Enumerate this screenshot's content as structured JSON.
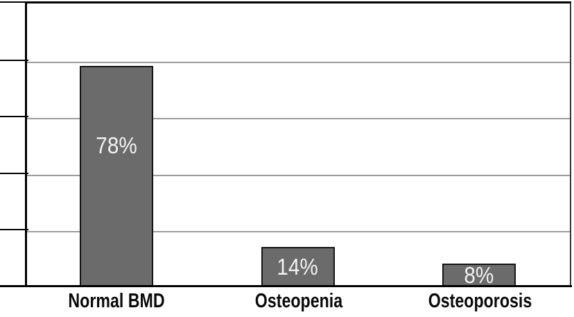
{
  "chart_data": {
    "type": "bar",
    "categories": [
      "Normal BMD",
      "Osteopenia",
      "Osteoporosis"
    ],
    "values": [
      78,
      14,
      8
    ],
    "value_labels": [
      "78%",
      "14%",
      "8%"
    ],
    "title": "",
    "xlabel": "",
    "ylabel": "",
    "ylim": [
      0,
      100
    ],
    "gridlines_percent": [
      20,
      40,
      60,
      80
    ],
    "grid": "horizontal-only",
    "legend": "none",
    "bar_color": "#6b6b6b",
    "bar_border_color": "#141414",
    "value_label_color": "#f2f2f2",
    "gridline_color": "#9c9c9c",
    "axis_color": "#000000",
    "category_label_color": "#0a0a0a"
  }
}
